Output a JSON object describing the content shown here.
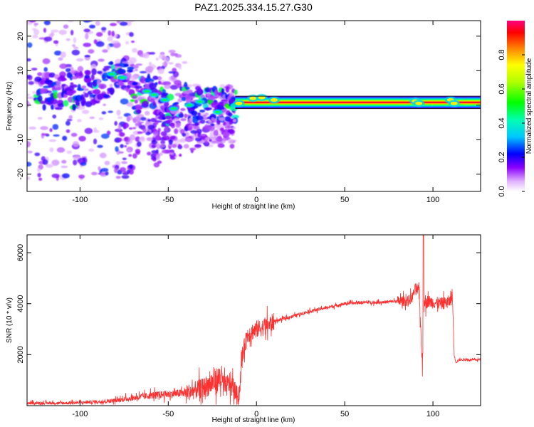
{
  "figure_title": "PAZ1.2025.334.15.27.G30",
  "chart_data": [
    {
      "type": "heatmap",
      "title": "PAZ1.2025.334.15.27.G30",
      "xlabel": "Height of straight line (km)",
      "ylabel": "Frequency (Hz)",
      "xlim": [
        -130,
        127
      ],
      "ylim": [
        -25,
        24.5
      ],
      "xticks": [
        -100,
        -50,
        0,
        50,
        100
      ],
      "xtick_labels": [
        "-100",
        "-50",
        "0",
        "50",
        "100"
      ],
      "yticks": [
        -20,
        -10,
        0,
        10,
        20
      ],
      "ytick_labels": [
        "-20",
        "-10",
        "0",
        "10",
        "20"
      ],
      "colorbar": {
        "label": "Normalized spectral amplitude",
        "range": [
          0,
          1
        ],
        "ticks": [
          0.0,
          0.2,
          0.4,
          0.6,
          0.8
        ],
        "tick_labels": [
          "0.0",
          "0.2",
          "0.4",
          "0.6",
          "0.8"
        ],
        "colors": [
          "#ffffff",
          "#c880ff",
          "#7a00ff",
          "#0000ff",
          "#00ffff",
          "#00ff00",
          "#ffff00",
          "#ff8000",
          "#ff0000",
          "#ff0080"
        ]
      },
      "ridge": [
        {
          "x": -115,
          "y": 4.0,
          "a": 0.45
        },
        {
          "x": -105,
          "y": 4.0,
          "a": 0.45
        },
        {
          "x": -95,
          "y": 5.0,
          "a": 0.45
        },
        {
          "x": -85,
          "y": 7.0,
          "a": 0.5
        },
        {
          "x": -80,
          "y": 10.0,
          "a": 0.55
        },
        {
          "x": -74,
          "y": 8.0,
          "a": 0.6
        },
        {
          "x": -68,
          "y": 2.0,
          "a": 0.5
        },
        {
          "x": -60,
          "y": 4.5,
          "a": 0.5
        },
        {
          "x": -55,
          "y": 1.5,
          "a": 0.5
        },
        {
          "x": -50,
          "y": -2.0,
          "a": 0.45
        },
        {
          "x": -45,
          "y": 2.0,
          "a": 0.45
        },
        {
          "x": -35,
          "y": 0.0,
          "a": 0.5
        },
        {
          "x": -25,
          "y": 0.0,
          "a": 0.45
        },
        {
          "x": -12,
          "y": 0.0,
          "a": 0.5
        },
        {
          "x": -5,
          "y": 1.5,
          "a": 0.55
        },
        {
          "x": 5,
          "y": 2.0,
          "a": 0.55
        },
        {
          "x": 15,
          "y": 1.0,
          "a": 0.6
        },
        {
          "x": 30,
          "y": 0.7,
          "a": 0.9
        },
        {
          "x": 60,
          "y": 0.7,
          "a": 0.9
        },
        {
          "x": 90,
          "y": 0.7,
          "a": 0.9
        },
        {
          "x": 110,
          "y": 1.0,
          "a": 0.6
        },
        {
          "x": 125,
          "y": 1.0,
          "a": 0.85
        }
      ],
      "band": {
        "x_start": -12,
        "x_end": 127,
        "y_center": 0.8,
        "half_width": 1.8
      }
    },
    {
      "type": "line",
      "xlabel": "Height of straight line (km)",
      "ylabel": "SNR (10 * v/v)",
      "xlim": [
        -130,
        127
      ],
      "ylim": [
        0,
        6700
      ],
      "xticks": [
        -100,
        -50,
        0,
        50,
        100
      ],
      "xtick_labels": [
        "-100",
        "-50",
        "0",
        "50",
        "100"
      ],
      "yticks": [
        2000,
        4000,
        6000
      ],
      "ytick_labels": [
        "2000",
        "4000",
        "6000"
      ],
      "line_color": "#ff3030",
      "x": [
        -130,
        -110,
        -100,
        -90,
        -80,
        -70,
        -60,
        -50,
        -40,
        -35,
        -30,
        -25,
        -20,
        -18,
        -15,
        -10,
        -8,
        -5,
        0,
        5,
        10,
        20,
        30,
        40,
        50,
        60,
        70,
        80,
        85,
        88,
        90,
        92,
        93,
        94,
        95,
        96,
        97,
        100,
        105,
        110,
        111,
        112,
        113,
        115,
        120,
        127
      ],
      "y": [
        100,
        100,
        120,
        150,
        200,
        300,
        400,
        450,
        500,
        600,
        700,
        900,
        1100,
        700,
        900,
        300,
        2000,
        2800,
        3000,
        3100,
        3300,
        3500,
        3700,
        3850,
        4000,
        4050,
        4050,
        4100,
        4100,
        4200,
        4600,
        4500,
        3200,
        1500,
        4200,
        4000,
        4100,
        4050,
        4000,
        4100,
        4400,
        2000,
        1700,
        1800,
        1800,
        1800
      ]
    }
  ]
}
